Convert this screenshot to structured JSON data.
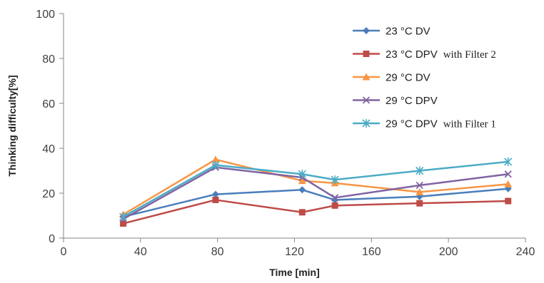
{
  "chart_data": {
    "type": "line",
    "xlabel": "Time [min]",
    "ylabel": "Thinking difficulty[%]",
    "xlim": [
      0,
      240
    ],
    "ylim": [
      0,
      100
    ],
    "xticks": [
      0,
      40,
      80,
      120,
      160,
      200,
      240
    ],
    "yticks": [
      0,
      20,
      40,
      60,
      80,
      100
    ],
    "grid": false,
    "legend_position": "top-right",
    "x": [
      31,
      79,
      124,
      141,
      185,
      231
    ],
    "series": [
      {
        "name": "23 °C DV",
        "suffix": "",
        "color": "#4a7ebb",
        "marker": "diamond",
        "values": [
          9.5,
          19.5,
          21.5,
          17,
          18.5,
          22
        ]
      },
      {
        "name": "23 °C DPV",
        "suffix": "with Filter 2",
        "color": "#be4b48",
        "marker": "square",
        "values": [
          6.5,
          17,
          11.5,
          14.5,
          15.5,
          16.5
        ]
      },
      {
        "name": "29 °C DV",
        "suffix": "",
        "color": "#f79646",
        "marker": "triangle",
        "values": [
          10.5,
          35,
          25.5,
          24.5,
          20.5,
          24
        ]
      },
      {
        "name": "29 °C DPV",
        "suffix": "",
        "color": "#8064a2",
        "marker": "x",
        "values": [
          8.5,
          31.5,
          27,
          18,
          23.5,
          28.5
        ]
      },
      {
        "name": "29 °C DPV",
        "suffix": "with Filter 1",
        "color": "#4bacc6",
        "marker": "star",
        "values": [
          9.5,
          32.5,
          28.5,
          26,
          30,
          34
        ]
      }
    ]
  }
}
